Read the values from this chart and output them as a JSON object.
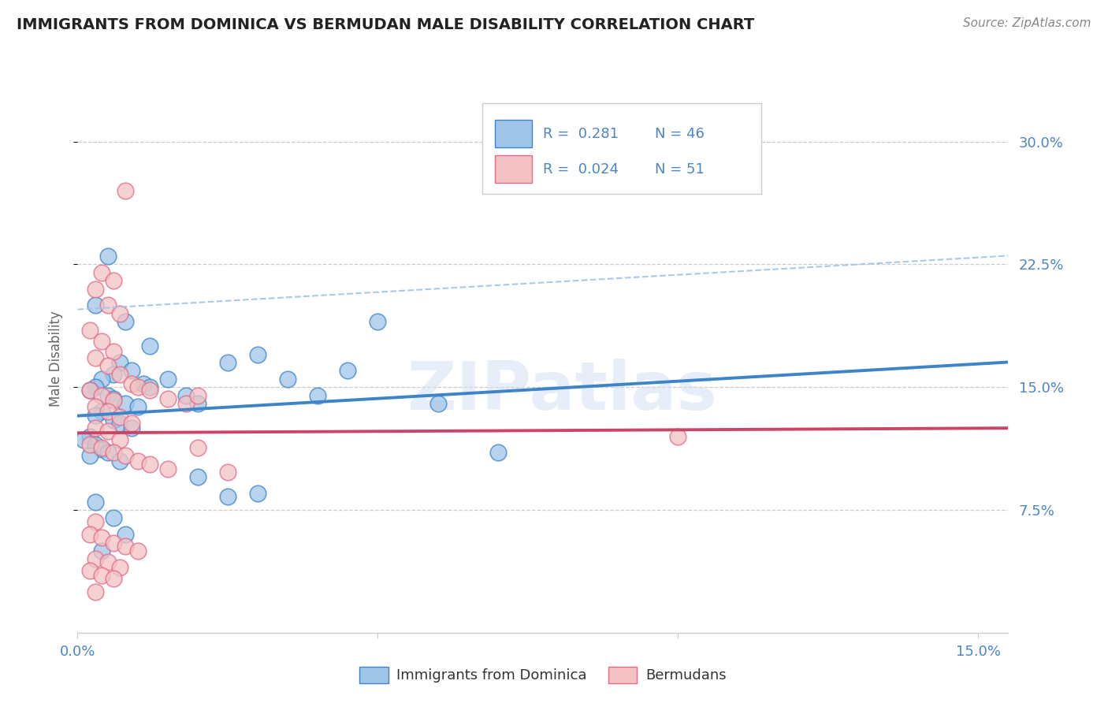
{
  "title": "IMMIGRANTS FROM DOMINICA VS BERMUDAN MALE DISABILITY CORRELATION CHART",
  "source": "Source: ZipAtlas.com",
  "ylabel": "Male Disability",
  "watermark": "ZIPatlas",
  "blue_R": 0.281,
  "blue_N": 46,
  "pink_R": 0.024,
  "pink_N": 51,
  "xlim": [
    0.0,
    0.155
  ],
  "ylim": [
    0.0,
    0.335
  ],
  "xtick_pos": [
    0.0,
    0.05,
    0.1,
    0.15
  ],
  "xtick_labels": [
    "0.0%",
    "",
    "",
    "15.0%"
  ],
  "ytick_pos": [
    0.075,
    0.15,
    0.225,
    0.3
  ],
  "ytick_labels": [
    "7.5%",
    "15.0%",
    "22.5%",
    "30.0%"
  ],
  "blue_face": "#9fc5e8",
  "blue_edge": "#3d85c8",
  "pink_face": "#f4c2c2",
  "pink_edge": "#e06c8a",
  "blue_line": "#3d85c8",
  "pink_line": "#cc4466",
  "dashed_line": "#9fc5e8",
  "grid_color": "#cccccc",
  "title_color": "#222222",
  "label_color": "#4a86c8",
  "blue_scatter_x": [
    0.005,
    0.003,
    0.008,
    0.012,
    0.007,
    0.009,
    0.006,
    0.004,
    0.011,
    0.003,
    0.002,
    0.005,
    0.006,
    0.008,
    0.01,
    0.004,
    0.003,
    0.006,
    0.007,
    0.009,
    0.012,
    0.015,
    0.018,
    0.02,
    0.025,
    0.03,
    0.035,
    0.04,
    0.045,
    0.002,
    0.001,
    0.003,
    0.004,
    0.005,
    0.06,
    0.002,
    0.007,
    0.05,
    0.003,
    0.006,
    0.02,
    0.025,
    0.008,
    0.07,
    0.004,
    0.03
  ],
  "blue_scatter_y": [
    0.23,
    0.2,
    0.19,
    0.175,
    0.165,
    0.16,
    0.158,
    0.155,
    0.152,
    0.15,
    0.148,
    0.145,
    0.143,
    0.14,
    0.138,
    0.135,
    0.133,
    0.13,
    0.128,
    0.125,
    0.15,
    0.155,
    0.145,
    0.14,
    0.165,
    0.17,
    0.155,
    0.145,
    0.16,
    0.12,
    0.118,
    0.115,
    0.112,
    0.11,
    0.14,
    0.108,
    0.105,
    0.19,
    0.08,
    0.07,
    0.095,
    0.083,
    0.06,
    0.11,
    0.05,
    0.085
  ],
  "pink_scatter_x": [
    0.004,
    0.006,
    0.008,
    0.003,
    0.005,
    0.007,
    0.002,
    0.004,
    0.006,
    0.003,
    0.005,
    0.007,
    0.009,
    0.002,
    0.004,
    0.006,
    0.003,
    0.005,
    0.007,
    0.009,
    0.01,
    0.012,
    0.015,
    0.018,
    0.02,
    0.003,
    0.005,
    0.007,
    0.002,
    0.004,
    0.006,
    0.008,
    0.01,
    0.012,
    0.015,
    0.003,
    0.02,
    0.025,
    0.002,
    0.004,
    0.006,
    0.008,
    0.01,
    0.003,
    0.005,
    0.1,
    0.007,
    0.002,
    0.004,
    0.006,
    0.003
  ],
  "pink_scatter_y": [
    0.22,
    0.215,
    0.27,
    0.21,
    0.2,
    0.195,
    0.185,
    0.178,
    0.172,
    0.168,
    0.163,
    0.158,
    0.152,
    0.148,
    0.145,
    0.142,
    0.138,
    0.135,
    0.132,
    0.128,
    0.15,
    0.148,
    0.143,
    0.14,
    0.145,
    0.125,
    0.123,
    0.118,
    0.115,
    0.113,
    0.11,
    0.108,
    0.105,
    0.103,
    0.1,
    0.068,
    0.113,
    0.098,
    0.06,
    0.058,
    0.055,
    0.053,
    0.05,
    0.045,
    0.043,
    0.12,
    0.04,
    0.038,
    0.035,
    0.033,
    0.025
  ]
}
